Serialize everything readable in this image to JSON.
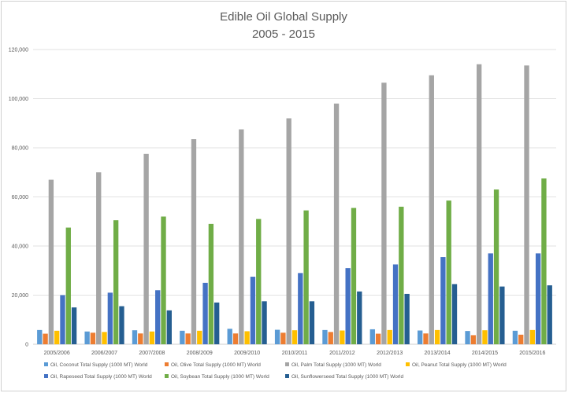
{
  "chart_data": {
    "type": "bar",
    "title": "Edible Oil Global Supply",
    "subtitle": "2005 - 2015",
    "xlabel": "",
    "ylabel": "",
    "ylim": [
      0,
      120000
    ],
    "yticks": [
      "0",
      "20,000",
      "40,000",
      "60,000",
      "80,000",
      "100,000",
      "120,000"
    ],
    "grid": true,
    "legend_position": "bottom",
    "categories": [
      "2005/2006",
      "2006/2007",
      "2007/2008",
      "2008/2009",
      "2009/2010",
      "2010/2011",
      "2011/2012",
      "2012/2013",
      "2013/2014",
      "2014/2015",
      "2015/2016"
    ],
    "series": [
      {
        "name": "Oil, Coconut Total Supply (1000 MT) World",
        "color": "#5B9BD5",
        "values": [
          5800,
          5200,
          5700,
          5500,
          6300,
          5900,
          5800,
          6100,
          5600,
          5400,
          5500
        ]
      },
      {
        "name": "Oil, Olive Total Supply (1000 MT) World",
        "color": "#ED7D31",
        "values": [
          4300,
          4700,
          4400,
          4400,
          4400,
          4700,
          5000,
          4300,
          4400,
          3700,
          3900
        ]
      },
      {
        "name": "Oil, Palm Total Supply (1000 MT) World",
        "color": "#A5A5A5",
        "values": [
          67000,
          70000,
          77500,
          83500,
          87500,
          92000,
          98000,
          106500,
          109500,
          114000,
          113500
        ]
      },
      {
        "name": "Oil, Peanut Total Supply (1000 MT) World",
        "color": "#FFC000",
        "values": [
          5500,
          5000,
          5200,
          5500,
          5300,
          5700,
          5600,
          5800,
          5800,
          5700,
          5800
        ]
      },
      {
        "name": "Oil, Rapeseed Total Supply (1000 MT) World",
        "color": "#4472C4",
        "values": [
          20000,
          21000,
          22000,
          25000,
          27500,
          29000,
          31000,
          32500,
          35500,
          37000,
          37000
        ]
      },
      {
        "name": "Oil, Soybean Total Supply (1000 MT) World",
        "color": "#70AD47",
        "values": [
          47500,
          50500,
          52000,
          49000,
          51000,
          54500,
          55500,
          56000,
          58500,
          63000,
          67500
        ]
      },
      {
        "name": "Oil, Sunflowerseed Total Supply (1000 MT) World",
        "color": "#255E91",
        "values": [
          15000,
          15500,
          13800,
          17000,
          17500,
          17500,
          21500,
          20500,
          24500,
          23500,
          24000
        ]
      }
    ]
  }
}
